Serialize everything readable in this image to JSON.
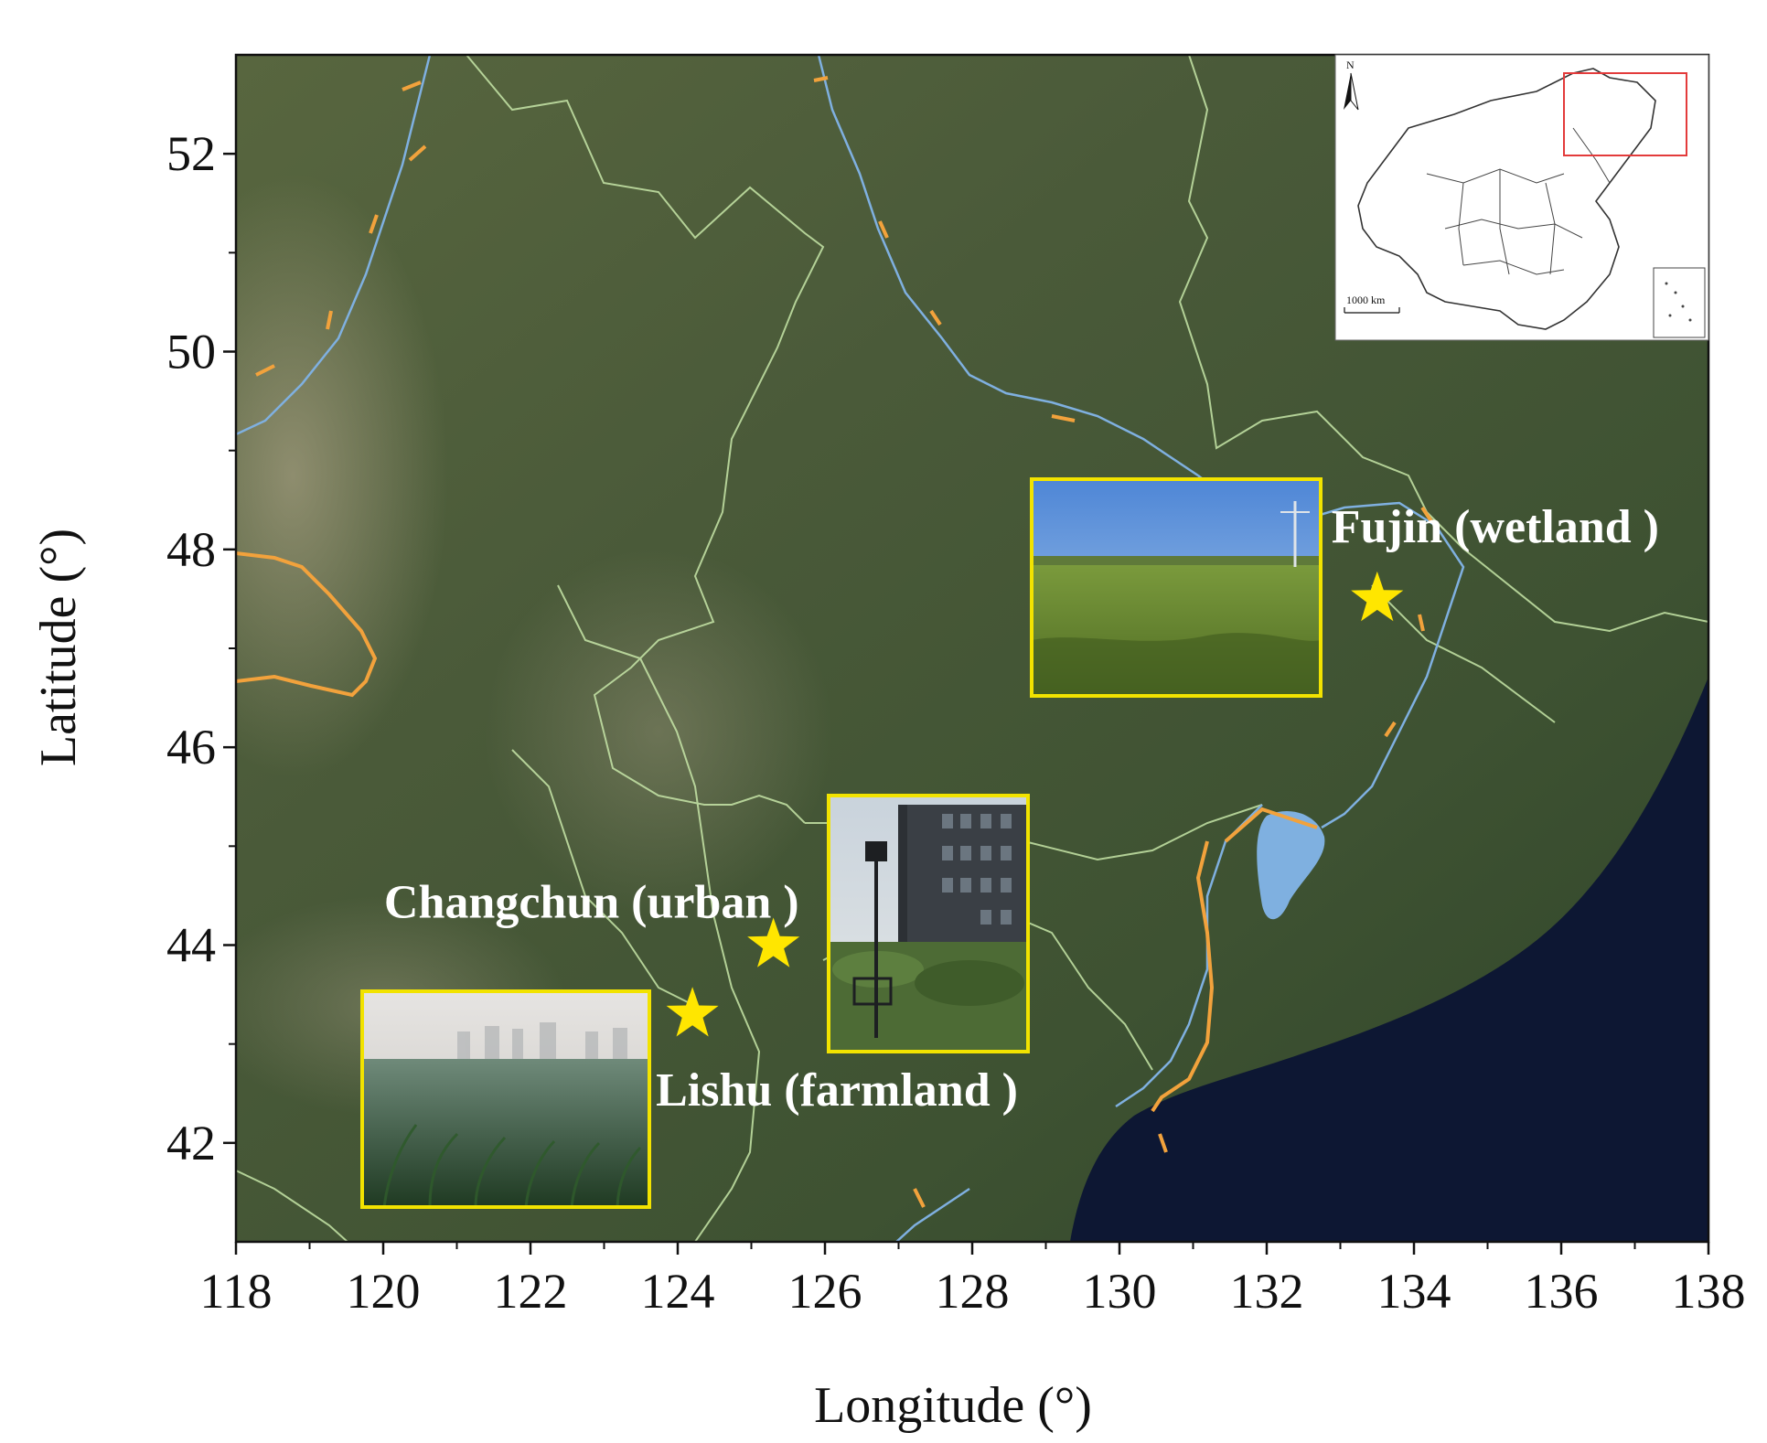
{
  "map": {
    "xlabel": "Longitude (°)",
    "ylabel": "Latitude (°)",
    "x_range": [
      118,
      138
    ],
    "y_range": [
      41,
      53
    ],
    "x_ticks": [
      "118",
      "120",
      "122",
      "124",
      "126",
      "128",
      "130",
      "132",
      "134",
      "136",
      "138"
    ],
    "y_ticks": [
      "42",
      "44",
      "46",
      "48",
      "50",
      "52"
    ],
    "colors": {
      "land": "#4b5a3c",
      "sea": "#0d1733",
      "boundary": "#c7e6a8",
      "river": "#7fb0e0",
      "border": "#f2a23c",
      "frame": "#f2e300",
      "star": "#ffe600",
      "inset_box": "#e33b3b"
    },
    "sites": [
      {
        "label": "Fujin (wetland )",
        "lon": 133.5,
        "lat": 47.5
      },
      {
        "label": "Changchun (urban )",
        "lon": 125.3,
        "lat": 44.0
      },
      {
        "label": "Lishu (farmland )",
        "lon": 124.2,
        "lat": 43.3
      }
    ],
    "inset": {
      "north_label": "N",
      "scale_label": "1000 km",
      "north_icon": "north-arrow-icon"
    },
    "photos": [
      "wetland-photo",
      "urban-photo",
      "farmland-photo"
    ]
  }
}
